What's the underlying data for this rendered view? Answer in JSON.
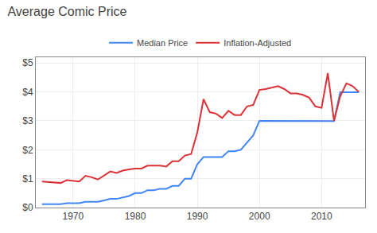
{
  "chart_data": {
    "type": "line",
    "title": "Average Comic Price",
    "x": [
      1965,
      1966,
      1967,
      1968,
      1969,
      1970,
      1971,
      1972,
      1973,
      1974,
      1975,
      1976,
      1977,
      1978,
      1979,
      1980,
      1981,
      1982,
      1983,
      1984,
      1985,
      1986,
      1987,
      1988,
      1989,
      1990,
      1991,
      1992,
      1993,
      1994,
      1995,
      1996,
      1997,
      1998,
      1999,
      2000,
      2001,
      2002,
      2003,
      2004,
      2005,
      2006,
      2007,
      2008,
      2009,
      2010,
      2011,
      2012,
      2013,
      2014,
      2015,
      2016
    ],
    "series": [
      {
        "name": "Median Price",
        "color": "#4285F4",
        "values": [
          0.12,
          0.12,
          0.12,
          0.12,
          0.15,
          0.15,
          0.15,
          0.2,
          0.2,
          0.2,
          0.25,
          0.3,
          0.3,
          0.35,
          0.4,
          0.5,
          0.5,
          0.6,
          0.6,
          0.65,
          0.65,
          0.75,
          0.75,
          1.0,
          1.0,
          1.5,
          1.75,
          1.75,
          1.75,
          1.75,
          1.95,
          1.95,
          2.0,
          2.25,
          2.5,
          3.0,
          3.0,
          3.0,
          3.0,
          3.0,
          3.0,
          3.0,
          3.0,
          3.0,
          3.0,
          3.0,
          3.0,
          2.99,
          3.99,
          3.99,
          3.99,
          3.99
        ]
      },
      {
        "name": "Inflation-Adjusted",
        "color": "#DB3236",
        "values": [
          0.9,
          0.88,
          0.87,
          0.85,
          0.95,
          0.93,
          0.9,
          1.1,
          1.05,
          0.97,
          1.1,
          1.25,
          1.2,
          1.28,
          1.32,
          1.35,
          1.35,
          1.45,
          1.45,
          1.45,
          1.42,
          1.6,
          1.6,
          1.8,
          1.85,
          2.6,
          3.75,
          3.3,
          3.25,
          3.1,
          3.35,
          3.2,
          3.2,
          3.5,
          3.55,
          4.07,
          4.1,
          4.15,
          4.2,
          4.1,
          3.95,
          3.95,
          3.9,
          3.8,
          3.5,
          3.45,
          4.65,
          3.0,
          3.85,
          4.3,
          4.2,
          4.0
        ]
      }
    ],
    "xlim": [
      1964,
      2017
    ],
    "xticks": [
      1970,
      1980,
      1990,
      2000,
      2010
    ],
    "ylim": [
      0,
      5.2
    ],
    "yticks": [
      {
        "value": 0,
        "label": "$0"
      },
      {
        "value": 1,
        "label": "$1"
      },
      {
        "value": 2,
        "label": "$2"
      },
      {
        "value": 3,
        "label": "$3"
      },
      {
        "value": 4,
        "label": "$4"
      },
      {
        "value": 5,
        "label": "$5"
      }
    ],
    "grid": true,
    "legend": "top"
  }
}
